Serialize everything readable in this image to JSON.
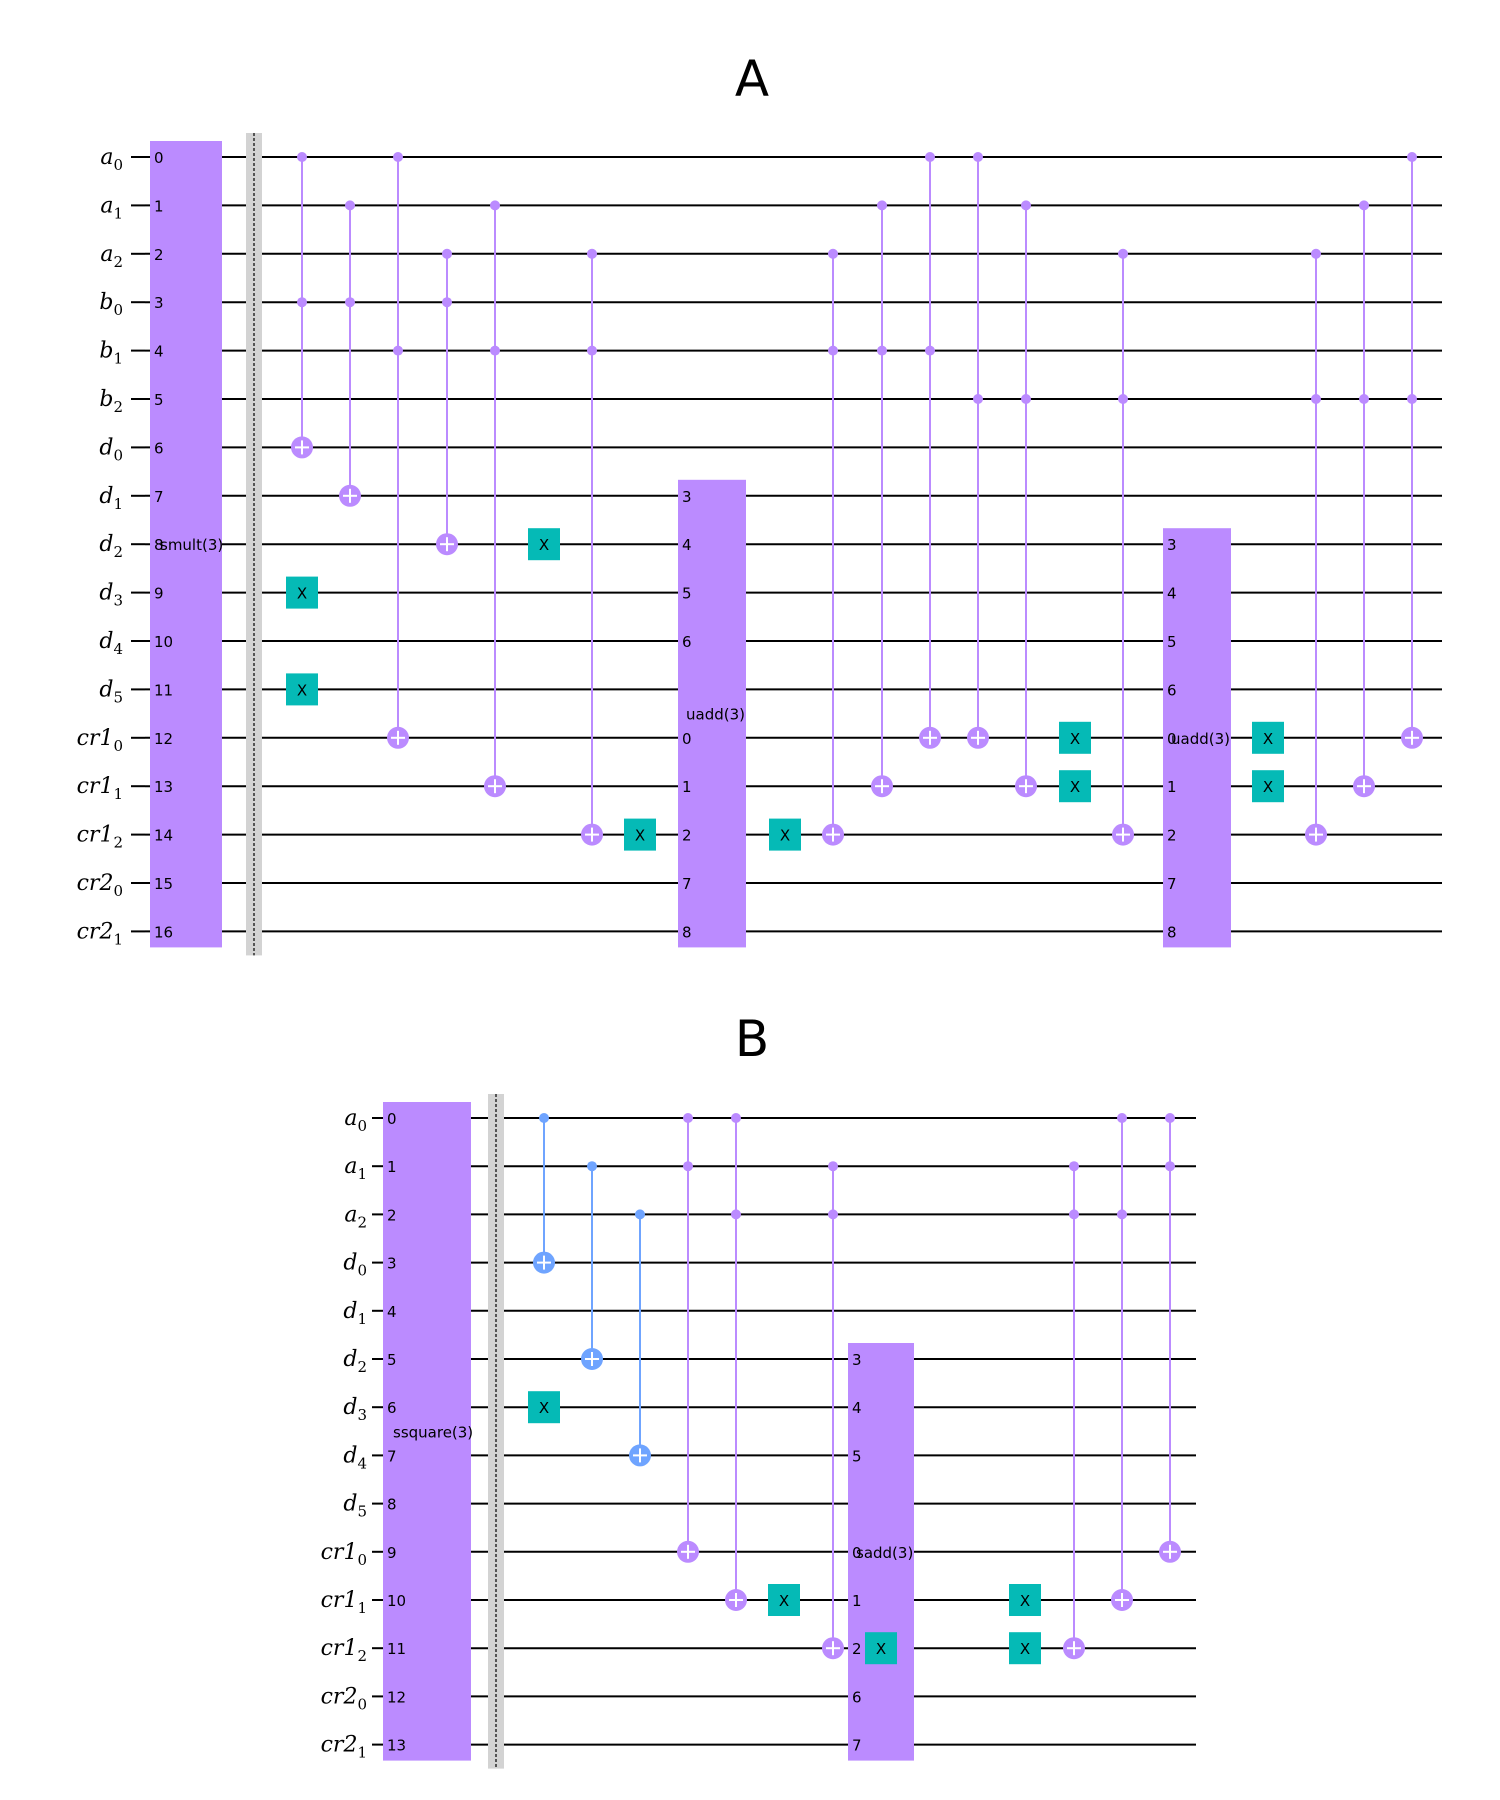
{
  "colors": {
    "block": "#bb8bff",
    "x_gate": "#05bab6",
    "purple_ctrl": "#bb8bff",
    "blue_ctrl": "#6fa4ff",
    "barrier": "#d3d3d3",
    "wire": "#000000"
  },
  "panels": [
    {
      "title": "A",
      "qubits": [
        {
          "base": "a",
          "sub": "0"
        },
        {
          "base": "a",
          "sub": "1"
        },
        {
          "base": "a",
          "sub": "2"
        },
        {
          "base": "b",
          "sub": "0"
        },
        {
          "base": "b",
          "sub": "1"
        },
        {
          "base": "b",
          "sub": "2"
        },
        {
          "base": "d",
          "sub": "0"
        },
        {
          "base": "d",
          "sub": "1"
        },
        {
          "base": "d",
          "sub": "2"
        },
        {
          "base": "d",
          "sub": "3"
        },
        {
          "base": "d",
          "sub": "4"
        },
        {
          "base": "d",
          "sub": "5"
        },
        {
          "base": "cr1",
          "sub": "0"
        },
        {
          "base": "cr1",
          "sub": "1"
        },
        {
          "base": "cr1",
          "sub": "2"
        },
        {
          "base": "cr2",
          "sub": "0"
        },
        {
          "base": "cr2",
          "sub": "1"
        }
      ],
      "blocks": [
        {
          "label": "smult(3)",
          "col": 0,
          "rows": [
            0,
            1,
            2,
            3,
            4,
            5,
            6,
            7,
            8,
            9,
            10,
            11,
            12,
            13,
            14,
            15,
            16
          ],
          "indices": [
            "0",
            "1",
            "2",
            "3",
            "4",
            "5",
            "6",
            "7",
            "8",
            "9",
            "10",
            "11",
            "12",
            "13",
            "14",
            "15",
            "16"
          ],
          "label_row": 8
        },
        {
          "label": "uadd(3)",
          "col": 11,
          "rows": [
            7,
            8,
            9,
            10,
            11,
            12,
            13,
            14,
            15,
            16
          ],
          "indices": [
            "3",
            "4",
            "5",
            "6",
            "",
            "0",
            "1",
            "2",
            "7",
            "8"
          ],
          "label_row": 11.5
        },
        {
          "label": "uadd(3)",
          "col": 21,
          "rows": [
            8,
            9,
            10,
            11,
            12,
            13,
            14,
            15,
            16
          ],
          "indices": [
            "3",
            "4",
            "5",
            "6",
            "0",
            "1",
            "2",
            "7",
            "8"
          ],
          "label_row": 12
        }
      ],
      "barrier_col": 1,
      "ops": [
        {
          "type": "x",
          "col": 2,
          "row": 9
        },
        {
          "type": "x",
          "col": 2,
          "row": 11
        },
        {
          "type": "ccx",
          "col": 2,
          "controls": [
            0,
            3
          ],
          "target": 6,
          "color": "purple_ctrl"
        },
        {
          "type": "ccx",
          "col": 3,
          "controls": [
            1,
            3
          ],
          "target": 7,
          "color": "purple_ctrl"
        },
        {
          "type": "ccx",
          "col": 4,
          "controls": [
            0,
            4
          ],
          "target": 12,
          "color": "purple_ctrl"
        },
        {
          "type": "ccx",
          "col": 5,
          "controls": [
            2,
            3
          ],
          "target": 8,
          "color": "purple_ctrl"
        },
        {
          "type": "ccx",
          "col": 6,
          "controls": [
            1,
            4
          ],
          "target": 13,
          "color": "purple_ctrl"
        },
        {
          "type": "x",
          "col": 7,
          "row": 8
        },
        {
          "type": "ccx",
          "col": 8,
          "controls": [
            2,
            4
          ],
          "target": 14,
          "color": "purple_ctrl"
        },
        {
          "type": "x",
          "col": 9,
          "row": 14
        },
        {
          "type": "x",
          "col": 13,
          "row": 14
        },
        {
          "type": "ccx",
          "col": 14,
          "controls": [
            2,
            4
          ],
          "target": 14,
          "color": "purple_ctrl"
        },
        {
          "type": "ccx",
          "col": 15,
          "controls": [
            1,
            4
          ],
          "target": 13,
          "color": "purple_ctrl"
        },
        {
          "type": "ccx",
          "col": 16,
          "controls": [
            0,
            4
          ],
          "target": 12,
          "color": "purple_ctrl"
        },
        {
          "type": "ccx",
          "col": 17,
          "controls": [
            0,
            5
          ],
          "target": 12,
          "color": "purple_ctrl"
        },
        {
          "type": "ccx",
          "col": 18,
          "controls": [
            1,
            5
          ],
          "target": 13,
          "color": "purple_ctrl"
        },
        {
          "type": "x",
          "col": 19,
          "row": 12
        },
        {
          "type": "x",
          "col": 19,
          "row": 13
        },
        {
          "type": "ccx",
          "col": 20,
          "controls": [
            2,
            5
          ],
          "target": 14,
          "color": "purple_ctrl"
        },
        {
          "type": "x",
          "col": 23,
          "row": 12
        },
        {
          "type": "x",
          "col": 23,
          "row": 13
        },
        {
          "type": "ccx",
          "col": 24,
          "controls": [
            2,
            5
          ],
          "target": 14,
          "color": "purple_ctrl"
        },
        {
          "type": "ccx",
          "col": 25,
          "controls": [
            1,
            5
          ],
          "target": 13,
          "color": "purple_ctrl"
        },
        {
          "type": "ccx",
          "col": 26,
          "controls": [
            0,
            5
          ],
          "target": 12,
          "color": "purple_ctrl"
        }
      ]
    },
    {
      "title": "B",
      "qubits": [
        {
          "base": "a",
          "sub": "0"
        },
        {
          "base": "a",
          "sub": "1"
        },
        {
          "base": "a",
          "sub": "2"
        },
        {
          "base": "d",
          "sub": "0"
        },
        {
          "base": "d",
          "sub": "1"
        },
        {
          "base": "d",
          "sub": "2"
        },
        {
          "base": "d",
          "sub": "3"
        },
        {
          "base": "d",
          "sub": "4"
        },
        {
          "base": "d",
          "sub": "5"
        },
        {
          "base": "cr1",
          "sub": "0"
        },
        {
          "base": "cr1",
          "sub": "1"
        },
        {
          "base": "cr1",
          "sub": "2"
        },
        {
          "base": "cr2",
          "sub": "0"
        },
        {
          "base": "cr2",
          "sub": "1"
        }
      ],
      "blocks": [
        {
          "label": "ssquare(3)",
          "col": 0,
          "rows": [
            0,
            1,
            2,
            3,
            4,
            5,
            6,
            7,
            8,
            9,
            10,
            11,
            12,
            13
          ],
          "indices": [
            "0",
            "1",
            "2",
            "3",
            "4",
            "5",
            "6",
            "7",
            "8",
            "9",
            "10",
            "11",
            "12",
            "13"
          ],
          "label_row": 6.5
        },
        {
          "label": "sadd(3)",
          "col": 9,
          "rows": [
            5,
            6,
            7,
            8,
            9,
            10,
            11,
            12,
            13
          ],
          "indices": [
            "3",
            "4",
            "5",
            "",
            "0",
            "1",
            "2",
            "6",
            "7"
          ],
          "label_row": 9
        }
      ],
      "barrier_col": 1,
      "ops": [
        {
          "type": "x",
          "col": 2,
          "row": 6
        },
        {
          "type": "cx",
          "col": 2,
          "controls": [
            0
          ],
          "target": 3,
          "color": "blue_ctrl"
        },
        {
          "type": "cx",
          "col": 3,
          "controls": [
            1
          ],
          "target": 5,
          "color": "blue_ctrl"
        },
        {
          "type": "cx",
          "col": 4,
          "controls": [
            2
          ],
          "target": 7,
          "color": "blue_ctrl"
        },
        {
          "type": "ccx",
          "col": 5,
          "controls": [
            0,
            1
          ],
          "target": 9,
          "color": "purple_ctrl"
        },
        {
          "type": "ccx",
          "col": 6,
          "controls": [
            0,
            2
          ],
          "target": 10,
          "color": "purple_ctrl"
        },
        {
          "type": "x",
          "col": 7,
          "row": 10
        },
        {
          "type": "ccx",
          "col": 8,
          "controls": [
            1,
            2
          ],
          "target": 11,
          "color": "purple_ctrl"
        },
        {
          "type": "x",
          "col": 9,
          "row": 11
        },
        {
          "type": "x",
          "col": 11,
          "row": 10
        },
        {
          "type": "x",
          "col": 11,
          "row": 11
        },
        {
          "type": "ccx",
          "col": 12,
          "controls": [
            1,
            2
          ],
          "target": 11,
          "color": "purple_ctrl"
        },
        {
          "type": "ccx",
          "col": 13,
          "controls": [
            0,
            2
          ],
          "target": 10,
          "color": "purple_ctrl"
        },
        {
          "type": "ccx",
          "col": 14,
          "controls": [
            0,
            1
          ],
          "target": 9,
          "color": "purple_ctrl"
        }
      ]
    }
  ]
}
